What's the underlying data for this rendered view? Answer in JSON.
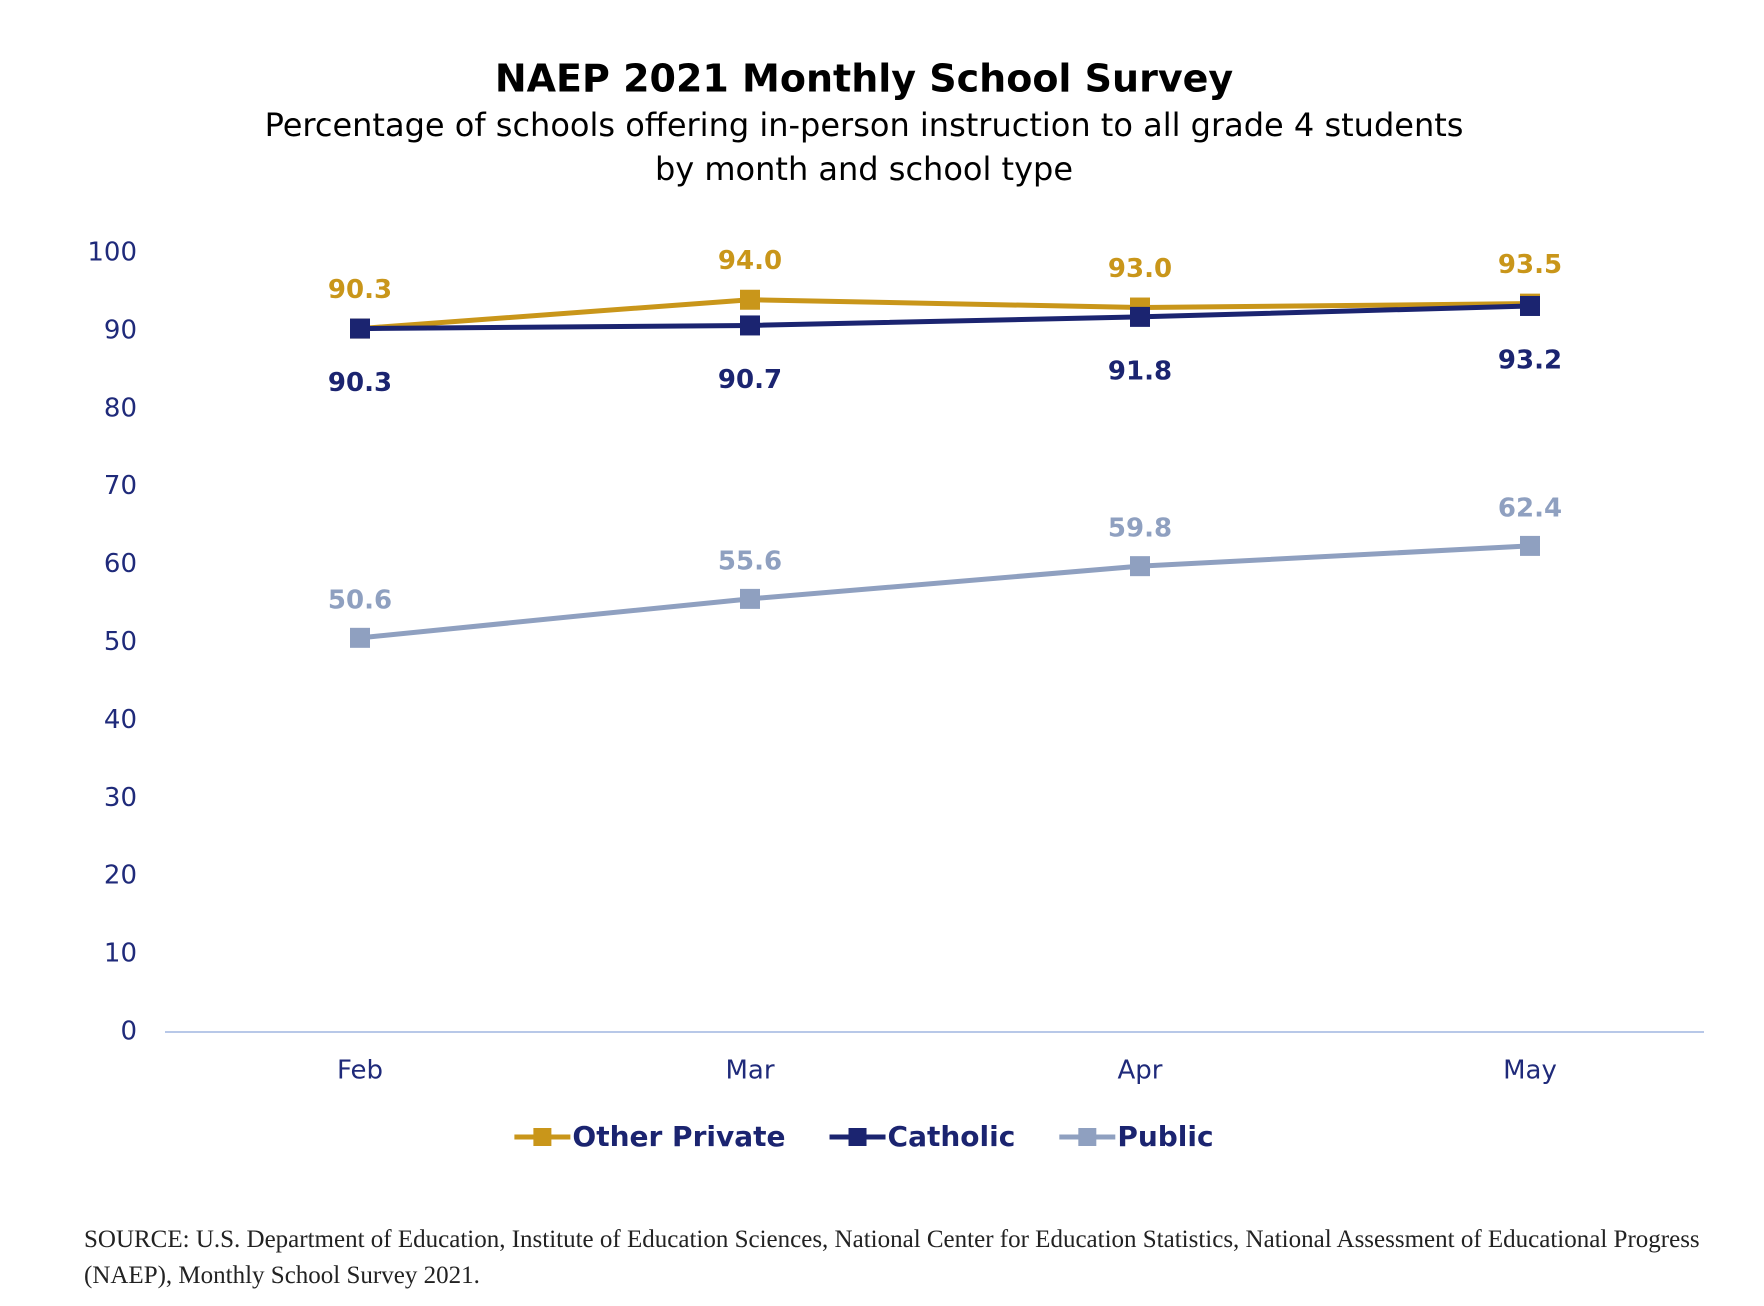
{
  "chart_data": {
    "type": "line",
    "title": "NAEP 2021 Monthly School Survey",
    "subtitle": [
      "Percentage  of schools offering in-person instruction to all grade 4 students",
      "by month and school type"
    ],
    "categories": [
      "Feb",
      "Mar",
      "Apr",
      "May"
    ],
    "series": [
      {
        "name": "Other Private",
        "color": "#C9961A",
        "values": [
          90.3,
          94.0,
          93.0,
          93.5
        ],
        "value_labels": [
          "90.3",
          "94.0",
          "93.0",
          "93.5"
        ]
      },
      {
        "name": "Catholic",
        "color": "#1B2470",
        "values": [
          90.3,
          90.7,
          91.8,
          93.2
        ],
        "value_labels": [
          "90.3",
          "90.7",
          "91.8",
          "93.2"
        ]
      },
      {
        "name": "Public",
        "color": "#8FA0C0",
        "values": [
          50.6,
          55.6,
          59.8,
          62.4
        ],
        "value_labels": [
          "50.6",
          "55.6",
          "59.8",
          "62.4"
        ]
      }
    ],
    "ylim": [
      0,
      100
    ],
    "yticks": [
      0,
      10,
      20,
      30,
      40,
      50,
      60,
      70,
      80,
      90,
      100
    ],
    "grid": false,
    "legend": "bottom",
    "source": "SOURCE: U.S. Department of Education, Institute of Education Sciences, National Center for Education Statistics, National Assessment of Educational Progress (NAEP), Monthly School Survey 2021."
  }
}
